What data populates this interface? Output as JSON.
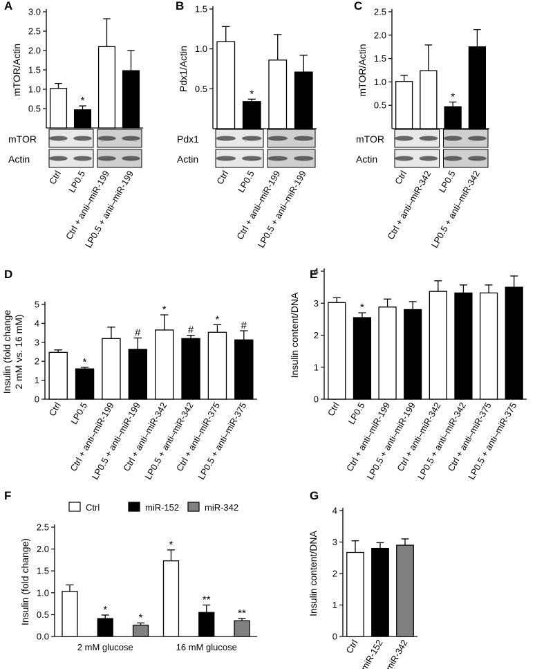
{
  "chart_data": [
    {
      "type": "bar",
      "label": "A",
      "ylabel": "mTOR/Actin",
      "categories": [
        "Ctrl",
        "LP0.5",
        "Ctrl + anti–miR-199",
        "LP0.5 + anti–miR-199"
      ],
      "values": [
        1.02,
        0.47,
        2.1,
        1.48
      ],
      "errors": [
        0.13,
        0.1,
        0.72,
        0.52
      ],
      "colors": [
        "#ffffff",
        "#000000",
        "#ffffff",
        "#000000"
      ],
      "significance": [
        null,
        "*",
        null,
        null
      ],
      "blot_labels": [
        "mTOR",
        "Actin"
      ],
      "ylim": [
        0,
        3
      ],
      "yticks": [
        0.5,
        {
          "value": 1,
          "label": "1.0"
        },
        1.5,
        {
          "value": 2,
          "label": "2.0"
        },
        2.5,
        {
          "value": 3,
          "label": "3.0"
        }
      ]
    },
    {
      "type": "bar",
      "label": "B",
      "ylabel": "Pdx1/Actin",
      "categories": [
        "Ctrl",
        "LP0.5",
        "Ctrl + anti–miR-199",
        "LP0.5 + anti–miR-199"
      ],
      "values": [
        1.09,
        0.34,
        0.86,
        0.71
      ],
      "errors": [
        0.19,
        0.03,
        0.32,
        0.21
      ],
      "colors": [
        "#ffffff",
        "#000000",
        "#ffffff",
        "#000000"
      ],
      "significance": [
        null,
        "*",
        null,
        null
      ],
      "blot_labels": [
        "Pdx1",
        "Actin"
      ],
      "ylim": [
        0,
        1.5
      ],
      "yticks": [
        0.5,
        {
          "value": 1,
          "label": "1.0"
        },
        1.5
      ]
    },
    {
      "type": "bar",
      "label": "C",
      "ylabel": "mTOR/Actin",
      "categories": [
        "Ctrl",
        "Ctrl + anti–miR-342",
        "LP0.5",
        "LP0.5 + anti–miR-342"
      ],
      "values": [
        1.01,
        1.24,
        0.47,
        1.75
      ],
      "errors": [
        0.13,
        0.55,
        0.1,
        0.37
      ],
      "colors": [
        "#ffffff",
        "#ffffff",
        "#000000",
        "#000000"
      ],
      "significance": [
        null,
        null,
        "*",
        null
      ],
      "blot_labels": [
        "mTOR",
        "Actin"
      ],
      "ylim": [
        0,
        2.5
      ],
      "yticks": [
        0.5,
        {
          "value": 1,
          "label": "1.0"
        },
        1.5,
        {
          "value": 2,
          "label": "2.0"
        },
        2.5
      ]
    },
    {
      "type": "bar",
      "label": "D",
      "ylabel": [
        "Insulin (fold change",
        "2 mM vs. 16 mM)"
      ],
      "categories": [
        "Ctrl",
        "LP0.5",
        "Ctrl + anti–miR-199",
        "LP0.5 + anti–miR-199",
        "Ctrl + anti–miR-342",
        "LP0.5 + anti–miR-342",
        "Ctrl + anti–miR-375",
        "LP0.5 + anti–miR-375"
      ],
      "values": [
        2.47,
        1.6,
        3.2,
        2.63,
        3.65,
        3.2,
        3.53,
        3.13
      ],
      "errors": [
        0.13,
        0.08,
        0.6,
        0.6,
        0.8,
        0.17,
        0.4,
        0.48
      ],
      "colors": [
        "#ffffff",
        "#000000",
        "#ffffff",
        "#000000",
        "#ffffff",
        "#000000",
        "#ffffff",
        "#000000"
      ],
      "significance": [
        null,
        "*",
        null,
        "#",
        "*",
        "#",
        "*",
        "#"
      ],
      "ylim": [
        0,
        5
      ],
      "yticks": [
        0,
        1,
        2,
        3,
        4,
        5
      ]
    },
    {
      "type": "bar",
      "label": "E",
      "ylabel": "Insulin content/DNA",
      "categories": [
        "Ctrl",
        "LP0.5",
        "Ctrl + anti–miR-199",
        "LP0.5 + anti–miR-199",
        "Ctrl + anti–miR-342",
        "LP0.5 + anti–miR-342",
        "Ctrl + anti–miR-375",
        "LP0.5 + anti–miR-375"
      ],
      "values": [
        3.02,
        2.55,
        2.88,
        2.8,
        3.37,
        3.32,
        3.32,
        3.5
      ],
      "errors": [
        0.15,
        0.15,
        0.25,
        0.25,
        0.33,
        0.25,
        0.25,
        0.35
      ],
      "colors": [
        "#ffffff",
        "#000000",
        "#ffffff",
        "#000000",
        "#ffffff",
        "#000000",
        "#ffffff",
        "#000000"
      ],
      "significance": [
        null,
        "*",
        null,
        null,
        null,
        null,
        null,
        null
      ],
      "ylim": [
        0,
        4
      ],
      "yticks": [
        0,
        1,
        2,
        3,
        4
      ]
    },
    {
      "type": "grouped-bar",
      "label": "F",
      "ylabel": "Insulin (fold change)",
      "categories": [
        "2 mM glucose",
        "16 mM glucose"
      ],
      "series": [
        {
          "name": "Ctrl",
          "color": "#ffffff",
          "values": [
            1.03,
            1.73
          ],
          "errors": [
            0.15,
            0.25
          ],
          "significance": [
            null,
            "*"
          ]
        },
        {
          "name": "miR-152",
          "color": "#000000",
          "values": [
            0.41,
            0.55
          ],
          "errors": [
            0.08,
            0.17
          ],
          "significance": [
            "*",
            "**"
          ]
        },
        {
          "name": "miR-342",
          "color": "#808080",
          "values": [
            0.26,
            0.36
          ],
          "errors": [
            0.05,
            0.05
          ],
          "significance": [
            "*",
            "**"
          ]
        }
      ],
      "ylim": [
        0,
        2.5
      ],
      "yticks": [
        {
          "value": 0,
          "label": "0.0"
        },
        0.5,
        {
          "value": 1,
          "label": "1.0"
        },
        1.5,
        {
          "value": 2,
          "label": "2.0"
        },
        2.5
      ]
    },
    {
      "type": "bar",
      "label": "G",
      "ylabel": "Insulin content/DNA",
      "categories": [
        "Ctrl",
        "miR-152",
        "miR-342"
      ],
      "values": [
        2.67,
        2.8,
        2.9
      ],
      "errors": [
        0.37,
        0.18,
        0.2
      ],
      "colors": [
        "#ffffff",
        "#000000",
        "#808080"
      ],
      "significance": [
        null,
        null,
        null
      ],
      "ylim": [
        0,
        4
      ],
      "yticks": [
        0,
        1,
        2,
        3,
        4
      ]
    }
  ]
}
